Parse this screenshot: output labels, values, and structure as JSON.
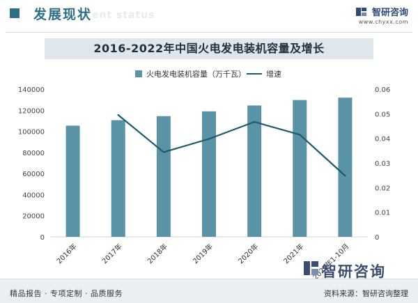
{
  "header": {
    "title": "发展现状",
    "subtitle": "ent status",
    "brand_name": "智研咨询",
    "brand_url": "www.chyxx.com"
  },
  "chart_data": {
    "type": "bar",
    "title": "2016-2022年中国火电发电装机容量及增长",
    "categories": [
      "2016年",
      "2017年",
      "2018年",
      "2019年",
      "2020年",
      "2021年",
      "2022年1-10月"
    ],
    "series": [
      {
        "name": "火电发电装机容量（万千瓦）",
        "type": "bar",
        "axis": "left",
        "color": "#5a93a5",
        "values": [
          105388,
          110604,
          114408,
          118957,
          124517,
          129678,
          131935
        ]
      },
      {
        "name": "增速",
        "type": "line",
        "axis": "right",
        "color": "#1c5a70",
        "values": [
          null,
          0.0495,
          0.0344,
          0.0398,
          0.0467,
          0.0415,
          0.0248
        ]
      }
    ],
    "y_left": {
      "min": 0,
      "max": 140000,
      "ticks": [
        "0",
        "20000",
        "40000",
        "60000",
        "80000",
        "100000",
        "120000",
        "140000"
      ]
    },
    "y_right": {
      "min": 0,
      "max": 0.06,
      "ticks": [
        "0",
        "0.01",
        "0.02",
        "0.03",
        "0.04",
        "0.05",
        "0.06"
      ]
    },
    "grid": false,
    "legend_position": "top-center"
  },
  "watermark": {
    "text": "智研咨询"
  },
  "footer": {
    "left": "精品报告 · 专项定制 · 品质服务",
    "right": "资料来源：智研咨询整理"
  }
}
